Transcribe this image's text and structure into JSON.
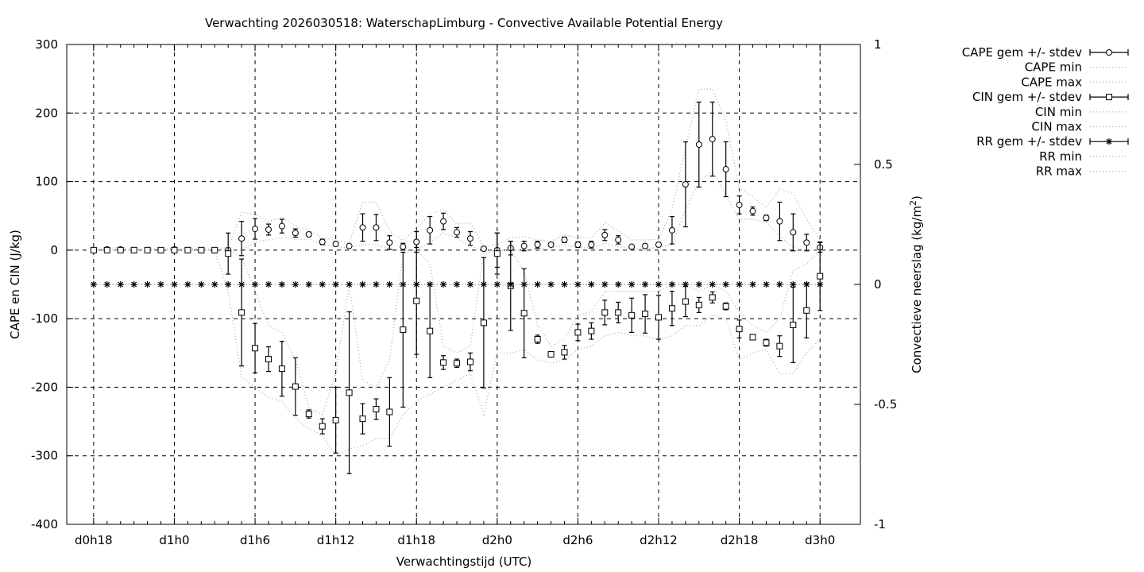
{
  "chart_data": {
    "type": "line",
    "title": "Verwachting 2026030518: WaterschapLimburg - Convective Available Potential Energy",
    "xlabel": "Verwachtingstijd (UTC)",
    "ylabel": "CAPE en CIN (J/kg)",
    "y2label_main": "Convectieve neerslag (kg/m",
    "y2label_sup": "2",
    "y2label_end": ")",
    "ylim": [
      -400,
      300
    ],
    "y2lim": [
      -1,
      1
    ],
    "xlim": [
      -2,
      57
    ],
    "grid": true,
    "legend_position": "top-right outside",
    "x_ticks": [
      {
        "x": 0,
        "label": "d0h18"
      },
      {
        "x": 6,
        "label": "d1h0"
      },
      {
        "x": 12,
        "label": "d1h6"
      },
      {
        "x": 18,
        "label": "d1h12"
      },
      {
        "x": 24,
        "label": "d1h18"
      },
      {
        "x": 30,
        "label": "d2h0"
      },
      {
        "x": 36,
        "label": "d2h6"
      },
      {
        "x": 42,
        "label": "d2h12"
      },
      {
        "x": 48,
        "label": "d2h18"
      },
      {
        "x": 54,
        "label": "d3h0"
      }
    ],
    "y_ticks": [
      {
        "v": 300,
        "label": "300"
      },
      {
        "v": 200,
        "label": "200"
      },
      {
        "v": 100,
        "label": "100"
      },
      {
        "v": 0,
        "label": "0"
      },
      {
        "v": -100,
        "label": "-100"
      },
      {
        "v": -200,
        "label": "-200"
      },
      {
        "v": -300,
        "label": "-300"
      },
      {
        "v": -400,
        "label": "-400"
      }
    ],
    "y2_ticks": [
      {
        "v": 1,
        "label": "1"
      },
      {
        "v": 0.5,
        "label": "0.5"
      },
      {
        "v": 0,
        "label": "0"
      },
      {
        "v": -0.5,
        "label": "-0.5"
      },
      {
        "v": -1,
        "label": "-1"
      }
    ],
    "series": [
      {
        "name": "CAPE gem +/- stdev",
        "marker": "circle",
        "x": [
          0,
          1,
          2,
          3,
          4,
          5,
          6,
          7,
          8,
          9,
          10,
          11,
          12,
          13,
          14,
          15,
          16,
          17,
          18,
          19,
          20,
          21,
          22,
          23,
          24,
          25,
          26,
          27,
          28,
          29,
          30,
          31,
          32,
          33,
          34,
          35,
          36,
          37,
          38,
          39,
          40,
          41,
          42,
          43,
          44,
          45,
          46,
          47,
          48,
          49,
          50,
          51,
          52,
          53,
          54
        ],
        "values": [
          0,
          1,
          1,
          0,
          0,
          0,
          1,
          0,
          0,
          0,
          0,
          17,
          31,
          30,
          35,
          25,
          23,
          12,
          9,
          6,
          33,
          33,
          11,
          5,
          12,
          29,
          42,
          26,
          17,
          2,
          0,
          3,
          6,
          8,
          8,
          15,
          8,
          8,
          22,
          15,
          5,
          6,
          8,
          29,
          96,
          154,
          162,
          118,
          66,
          57,
          47,
          42,
          26,
          11,
          4
        ],
        "errors": [
          2,
          2,
          2,
          1,
          1,
          1,
          2,
          1,
          1,
          1,
          3,
          25,
          15,
          8,
          10,
          6,
          3,
          4,
          3,
          2,
          20,
          19,
          10,
          5,
          15,
          20,
          12,
          7,
          10,
          2,
          25,
          10,
          7,
          5,
          3,
          4,
          4,
          5,
          8,
          6,
          2,
          3,
          3,
          20,
          62,
          62,
          54,
          40,
          13,
          6,
          4,
          28,
          27,
          12,
          7
        ]
      },
      {
        "name": "CAPE min",
        "x": [
          0,
          1,
          2,
          3,
          4,
          5,
          6,
          7,
          8,
          9,
          10,
          11,
          12,
          13,
          14,
          15,
          16,
          17,
          18,
          19,
          20,
          21,
          22,
          23,
          24,
          25,
          26,
          27,
          28,
          29,
          30,
          31,
          32,
          33,
          34,
          35,
          36,
          37,
          38,
          39,
          40,
          41,
          42,
          43,
          44,
          45,
          46,
          47,
          48,
          49,
          50,
          51,
          52,
          53,
          54
        ],
        "values": [
          0,
          0,
          0,
          0,
          0,
          0,
          0,
          0,
          0,
          0,
          0,
          0,
          12,
          15,
          18,
          16,
          16,
          8,
          5,
          3,
          8,
          8,
          2,
          0,
          0,
          12,
          25,
          18,
          5,
          0,
          0,
          0,
          0,
          2,
          3,
          8,
          4,
          3,
          10,
          5,
          2,
          2,
          4,
          8,
          60,
          100,
          115,
          80,
          45,
          45,
          40,
          20,
          5,
          0,
          0
        ]
      },
      {
        "name": "CAPE max",
        "x": [
          0,
          1,
          2,
          3,
          4,
          5,
          6,
          7,
          8,
          9,
          10,
          11,
          12,
          13,
          14,
          15,
          16,
          17,
          18,
          19,
          20,
          21,
          22,
          23,
          24,
          25,
          26,
          27,
          28,
          29,
          30,
          31,
          32,
          33,
          34,
          35,
          36,
          37,
          38,
          39,
          40,
          41,
          42,
          43,
          44,
          45,
          46,
          47,
          48,
          49,
          50,
          51,
          52,
          53,
          54
        ],
        "values": [
          2,
          3,
          3,
          2,
          2,
          2,
          3,
          2,
          2,
          2,
          4,
          55,
          52,
          42,
          48,
          35,
          30,
          18,
          14,
          10,
          70,
          70,
          28,
          14,
          32,
          52,
          60,
          38,
          40,
          5,
          8,
          18,
          20,
          15,
          13,
          22,
          18,
          18,
          40,
          28,
          15,
          15,
          16,
          60,
          150,
          235,
          235,
          190,
          90,
          78,
          62,
          90,
          82,
          45,
          15
        ]
      },
      {
        "name": "CIN gem +/- stdev",
        "marker": "square",
        "x": [
          0,
          1,
          2,
          3,
          4,
          5,
          6,
          7,
          8,
          9,
          10,
          11,
          12,
          13,
          14,
          15,
          16,
          17,
          18,
          19,
          20,
          21,
          22,
          23,
          24,
          25,
          26,
          27,
          28,
          29,
          30,
          31,
          32,
          33,
          34,
          35,
          36,
          37,
          38,
          39,
          40,
          41,
          42,
          43,
          44,
          45,
          46,
          47,
          48,
          49,
          50,
          51,
          52,
          53,
          54
        ],
        "values": [
          0,
          0,
          0,
          0,
          0,
          0,
          0,
          0,
          0,
          0,
          -5,
          -91,
          -143,
          -159,
          -173,
          -199,
          -239,
          -257,
          -248,
          -208,
          -246,
          -232,
          -236,
          -116,
          -74,
          -118,
          -164,
          -165,
          -163,
          -106,
          -5,
          -52,
          -92,
          -130,
          -152,
          -149,
          -120,
          -118,
          -91,
          -91,
          -95,
          -93,
          -98,
          -85,
          -75,
          -80,
          -69,
          -82,
          -115,
          -127,
          -135,
          -140,
          -109,
          -88,
          -38
        ],
        "errors": [
          2,
          2,
          2,
          2,
          2,
          2,
          2,
          2,
          2,
          2,
          30,
          78,
          36,
          18,
          40,
          42,
          6,
          11,
          48,
          118,
          22,
          15,
          50,
          113,
          78,
          68,
          10,
          6,
          13,
          95,
          30,
          65,
          65,
          6,
          4,
          10,
          12,
          12,
          18,
          15,
          25,
          28,
          32,
          25,
          22,
          11,
          8,
          5,
          13,
          4,
          5,
          15,
          55,
          40,
          50
        ]
      },
      {
        "name": "CIN min",
        "x": [
          0,
          1,
          2,
          3,
          4,
          5,
          6,
          7,
          8,
          9,
          10,
          11,
          12,
          13,
          14,
          15,
          16,
          17,
          18,
          19,
          20,
          21,
          22,
          23,
          24,
          25,
          26,
          27,
          28,
          29,
          30,
          31,
          32,
          33,
          34,
          35,
          36,
          37,
          38,
          39,
          40,
          41,
          42,
          43,
          44,
          45,
          46,
          47,
          48,
          49,
          50,
          51,
          52,
          53,
          54
        ],
        "values": [
          0,
          0,
          0,
          0,
          0,
          0,
          0,
          0,
          0,
          0,
          -60,
          -185,
          -200,
          -215,
          -220,
          -245,
          -260,
          -270,
          -300,
          -290,
          -285,
          -275,
          -275,
          -240,
          -220,
          -210,
          -200,
          -190,
          -180,
          -240,
          -150,
          -150,
          -145,
          -160,
          -165,
          -160,
          -145,
          -140,
          -125,
          -120,
          -125,
          -125,
          -130,
          -125,
          -110,
          -110,
          -95,
          -100,
          -160,
          -150,
          -145,
          -180,
          -180,
          -150,
          -130
        ]
      },
      {
        "name": "CIN max",
        "x": [
          0,
          1,
          2,
          3,
          4,
          5,
          6,
          7,
          8,
          9,
          10,
          11,
          12,
          13,
          14,
          15,
          16,
          17,
          18,
          19,
          20,
          21,
          22,
          23,
          24,
          25,
          26,
          27,
          28,
          29,
          30,
          31,
          32,
          33,
          34,
          35,
          36,
          37,
          38,
          39,
          40,
          41,
          42,
          43,
          44,
          45,
          46,
          47,
          48,
          49,
          50,
          51,
          52,
          53,
          54
        ],
        "values": [
          0,
          0,
          0,
          0,
          0,
          0,
          0,
          0,
          0,
          0,
          0,
          -10,
          -60,
          -110,
          -120,
          -160,
          -230,
          -240,
          -180,
          -50,
          -190,
          -200,
          -160,
          -5,
          0,
          -20,
          -140,
          -150,
          -140,
          -5,
          0,
          0,
          -30,
          -110,
          -140,
          -130,
          -95,
          -90,
          -60,
          -60,
          -60,
          -60,
          -60,
          -50,
          -50,
          -60,
          -50,
          -60,
          -90,
          -110,
          -120,
          -100,
          -30,
          -20,
          0
        ]
      },
      {
        "name": "RR gem +/- stdev",
        "marker": "star",
        "axis": "y2",
        "x": [
          0,
          1,
          2,
          3,
          4,
          5,
          6,
          7,
          8,
          9,
          10,
          11,
          12,
          13,
          14,
          15,
          16,
          17,
          18,
          19,
          20,
          21,
          22,
          23,
          24,
          25,
          26,
          27,
          28,
          29,
          30,
          31,
          32,
          33,
          34,
          35,
          36,
          37,
          38,
          39,
          40,
          41,
          42,
          43,
          44,
          45,
          46,
          47,
          48,
          49,
          50,
          51,
          52,
          53,
          54
        ],
        "values": [
          0,
          0,
          0,
          0,
          0,
          0,
          0,
          0,
          0,
          0,
          0,
          0,
          0,
          0,
          0,
          0,
          0,
          0,
          0,
          0,
          0,
          0,
          0,
          0,
          0,
          0,
          0,
          0,
          0,
          0,
          0,
          0,
          0,
          0,
          0,
          0,
          0,
          0,
          0,
          0,
          0,
          0,
          0,
          0,
          0,
          0,
          0,
          0,
          0,
          0,
          0,
          0,
          0,
          0,
          0
        ]
      },
      {
        "name": "RR min",
        "axis": "y2",
        "x": [
          0,
          54
        ],
        "values": [
          0,
          0
        ]
      },
      {
        "name": "RR max",
        "axis": "y2",
        "x": [
          0,
          54
        ],
        "values": [
          0,
          0
        ]
      }
    ]
  }
}
